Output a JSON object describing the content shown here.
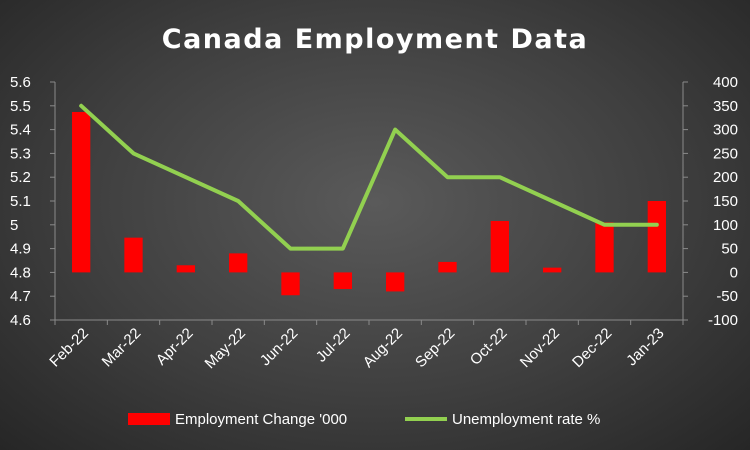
{
  "chart_data": {
    "type": "bar+line",
    "title": "Canada Employment Data",
    "categories": [
      "Feb-22",
      "Mar-22",
      "Apr-22",
      "May-22",
      "Jun-22",
      "Jul-22",
      "Aug-22",
      "Sep-22",
      "Oct-22",
      "Nov-22",
      "Dec-22",
      "Jan-23"
    ],
    "series": [
      {
        "name": "Employment Change '000",
        "type": "bar",
        "axis": "right",
        "color": "#ff0000",
        "values": [
          337,
          73,
          15,
          40,
          -48,
          -35,
          -40,
          22,
          108,
          10,
          105,
          150
        ]
      },
      {
        "name": "Unemployment rate %",
        "type": "line",
        "axis": "left",
        "color": "#92d050",
        "values": [
          5.5,
          5.3,
          5.2,
          5.1,
          4.9,
          4.9,
          5.4,
          5.2,
          5.2,
          5.1,
          5.0,
          5.0
        ]
      }
    ],
    "y_left": {
      "min": 4.6,
      "max": 5.6,
      "step": 0.1,
      "ticks": [
        "4.6",
        "4.7",
        "4.8",
        "4.9",
        "5",
        "5.1",
        "5.2",
        "5.3",
        "5.4",
        "5.5",
        "5.6"
      ]
    },
    "y_right": {
      "min": -100,
      "max": 400,
      "step": 50,
      "ticks": [
        "-100",
        "-50",
        "0",
        "50",
        "100",
        "150",
        "200",
        "250",
        "300",
        "350",
        "400"
      ]
    },
    "grid": false,
    "legend_position": "bottom"
  }
}
